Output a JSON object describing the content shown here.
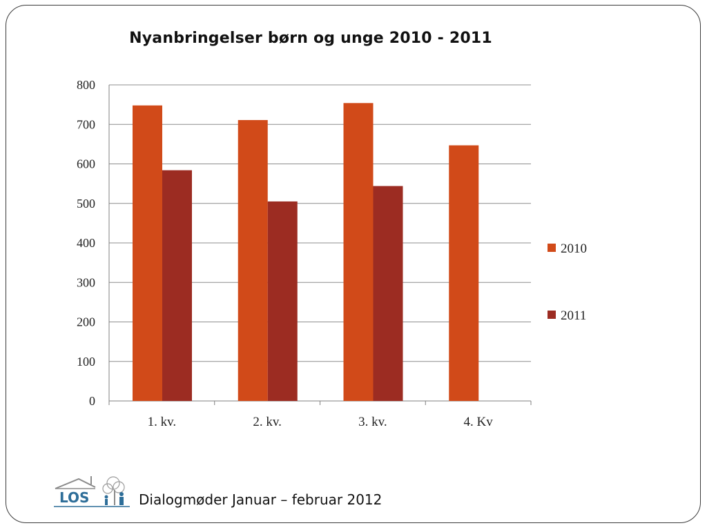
{
  "slide": {
    "title": "Nyanbringelser  børn og unge 2010 - 2011",
    "footer": "Dialogmøder Januar – februar 2012",
    "logo_text": "LOS"
  },
  "colors": {
    "series_2010": "#d14a19",
    "series_2011": "#9c2c22",
    "grid": "#8c8c8c",
    "logo_blue": "#2e6e99"
  },
  "chart_data": {
    "type": "bar",
    "title": "Nyanbringelser  børn og unge 2010 - 2011",
    "xlabel": "",
    "ylabel": "",
    "categories": [
      "1. kv.",
      "2. kv.",
      "3. kv.",
      "4. Kv"
    ],
    "series": [
      {
        "name": "2010",
        "values": [
          748,
          711,
          754,
          647
        ]
      },
      {
        "name": "2011",
        "values": [
          584,
          505,
          544,
          null
        ]
      }
    ],
    "ylim": [
      0,
      800
    ],
    "yticks": [
      0,
      100,
      200,
      300,
      400,
      500,
      600,
      700,
      800
    ],
    "grid": true,
    "legend_position": "right"
  }
}
